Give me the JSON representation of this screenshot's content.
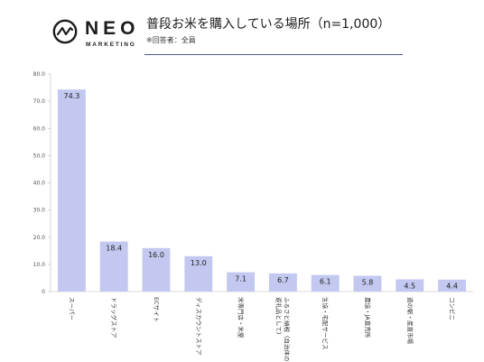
{
  "brand": {
    "name": "NEO",
    "sub": "MARKETING"
  },
  "chart_data": {
    "type": "bar",
    "title": "普段お米を購入している場所（n=1,000）",
    "subtitle": "※回答者：全員",
    "categories": [
      "スーパー",
      "ドラッグストア",
      "ECサイト",
      "ディスカウントストア",
      "米専門店・米屋",
      "ふるさと納税（自治体の返礼品として）",
      "生協・宅配サービス",
      "農協・JA直売所",
      "道の駅・産直市場",
      "コンビニ"
    ],
    "values": [
      74.3,
      18.4,
      16.0,
      13.0,
      7.1,
      6.7,
      6.1,
      5.8,
      4.5,
      4.4
    ],
    "value_labels": [
      "74.3",
      "18.4",
      "16.0",
      "13.0",
      "7.1",
      "6.7",
      "6.1",
      "5.8",
      "4.5",
      "4.4"
    ],
    "ylim": [
      0,
      80
    ],
    "yticks": [
      "0",
      "10.0",
      "20.0",
      "30.0",
      "40.0",
      "50.0",
      "60.0",
      "70.0",
      "80.0"
    ],
    "ytick_values": [
      0,
      10,
      20,
      30,
      40,
      50,
      60,
      70,
      80
    ],
    "grid": false,
    "legend": "none",
    "bar_color": "#c3c8f0",
    "xlabel": "",
    "ylabel": ""
  }
}
